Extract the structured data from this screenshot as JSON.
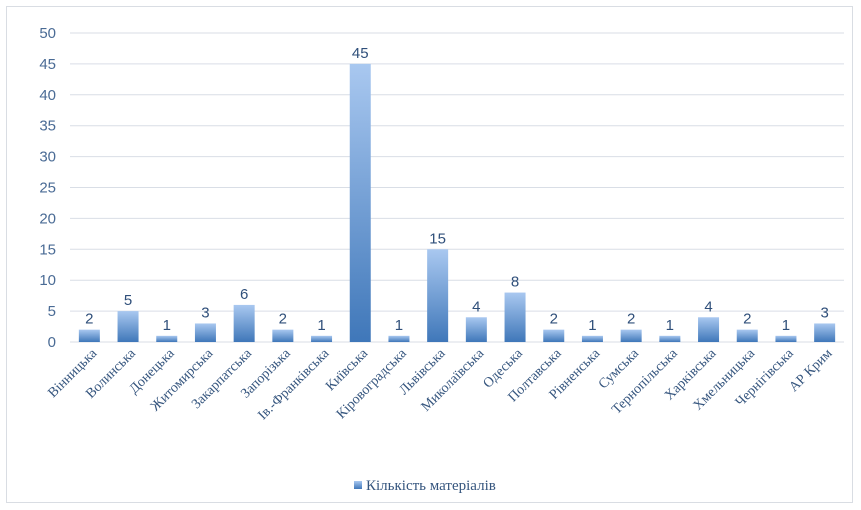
{
  "chart_data": {
    "type": "bar",
    "categories": [
      "Вінницька",
      "Волинська",
      "Донецька",
      "Житомирська",
      "Закарпатська",
      "Запорізька",
      "Ів.-Франківська",
      "Київська",
      "Кіровоградська",
      "Львівська",
      "Миколаївська",
      "Одеська",
      "Полтавська",
      "Рівненська",
      "Сумська",
      "Тернопільська",
      "Харківська",
      "Хмельницька",
      "Чернігівська",
      "АР Крим"
    ],
    "series": [
      {
        "name": "Кількість матеріалів",
        "values": [
          2,
          5,
          1,
          3,
          6,
          2,
          1,
          45,
          1,
          15,
          4,
          8,
          2,
          1,
          2,
          1,
          4,
          2,
          1,
          3
        ]
      }
    ],
    "ylim": [
      0,
      50
    ],
    "yticks": [
      0,
      5,
      10,
      15,
      20,
      25,
      30,
      35,
      40,
      45,
      50
    ],
    "grid": true,
    "legend": "bottom",
    "colors": {
      "bar_top": "#a9c8f0",
      "bar_bottom": "#3f77b9",
      "grid": "#d9dee6"
    }
  }
}
